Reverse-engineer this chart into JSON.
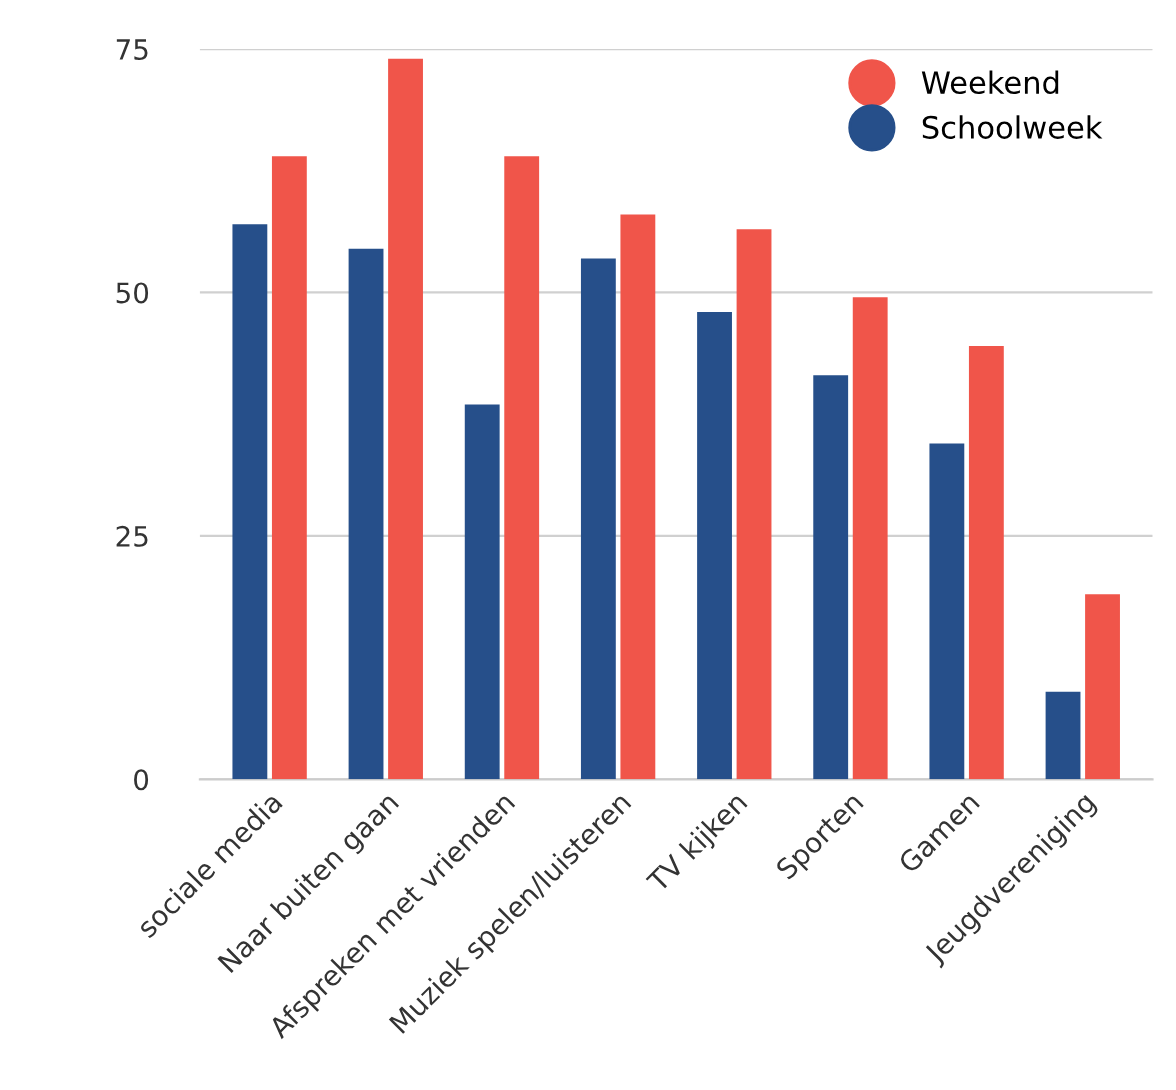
{
  "chart_data": {
    "type": "bar",
    "categories": [
      "sociale media",
      "Naar buiten gaan",
      "Afspreken met vrienden",
      "Muziek spelen/luisteren",
      "TV kijken",
      "Sporten",
      "Gamen",
      "Jeugdvereniging"
    ],
    "series": [
      {
        "name": "Schoolweek",
        "color": "#264f8a",
        "values": [
          57,
          54.5,
          38.5,
          53.5,
          48,
          41.5,
          34.5,
          9
        ]
      },
      {
        "name": "Weekend",
        "color": "#f0554a",
        "values": [
          64,
          74,
          64,
          58,
          56.5,
          49.5,
          44.5,
          19
        ]
      }
    ],
    "ylim": [
      0,
      75
    ],
    "yticks": [
      0,
      25,
      50,
      75
    ],
    "grid": "y",
    "legend": "top right"
  }
}
